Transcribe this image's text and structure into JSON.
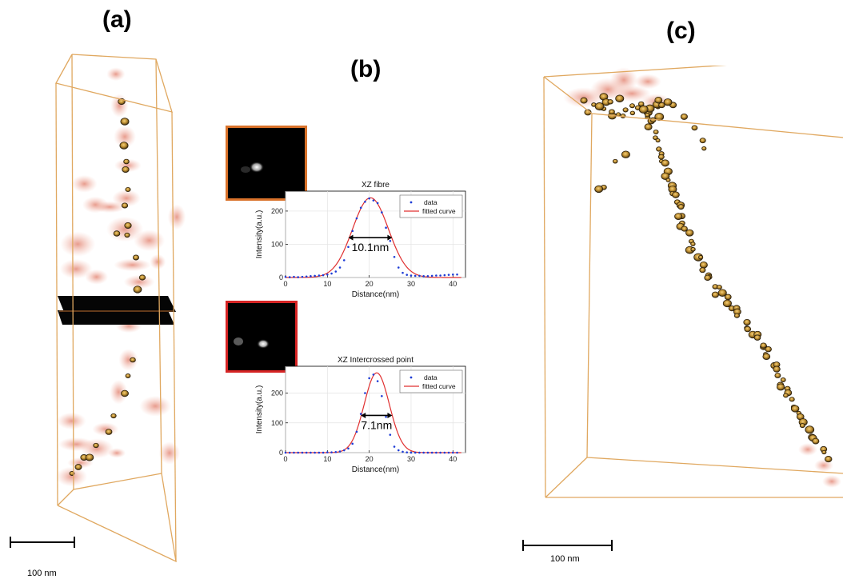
{
  "labels": {
    "a": "(a)",
    "b": "(b)",
    "c": "(c)"
  },
  "scalebars": {
    "left": "100 nm",
    "right": "100 nm"
  },
  "colors": {
    "box_edge": "#e0a860",
    "haze": "#e58c78",
    "bead": "#b98a2e",
    "thumb_frame_top": "#d9722a",
    "thumb_frame_bottom": "#d62424",
    "data": "#1f3dd6",
    "fit": "#e03030"
  },
  "chart_data": [
    {
      "type": "line",
      "title": "XZ fibre",
      "xlabel": "Distance(nm)",
      "ylabel": "Intensity(a.u.)",
      "xlim": [
        0,
        43
      ],
      "ylim": [
        0,
        260
      ],
      "xticks": [
        0,
        10,
        20,
        30,
        40
      ],
      "yticks": [
        0,
        100,
        200
      ],
      "grid": true,
      "legend": "top-right",
      "annotation": "10.1nm",
      "fwhm_range": [
        15,
        25.5
      ],
      "series": [
        {
          "name": "data",
          "style": "dots",
          "x": [
            0,
            1,
            2,
            3,
            4,
            5,
            6,
            7,
            8,
            9,
            10,
            11,
            12,
            13,
            14,
            15,
            16,
            17,
            18,
            19,
            20,
            21,
            22,
            23,
            24,
            25,
            26,
            27,
            28,
            29,
            30,
            31,
            32,
            33,
            34,
            35,
            36,
            37,
            38,
            39,
            40,
            41
          ],
          "y": [
            2,
            1,
            2,
            1,
            2,
            3,
            4,
            5,
            6,
            7,
            9,
            12,
            18,
            30,
            52,
            92,
            140,
            178,
            210,
            228,
            238,
            232,
            224,
            196,
            150,
            110,
            62,
            30,
            14,
            8,
            6,
            5,
            5,
            4,
            4,
            5,
            6,
            6,
            7,
            8,
            9,
            9
          ]
        },
        {
          "name": "fitted curve",
          "style": "line",
          "gaussian": {
            "amp": 240,
            "mu": 20.3,
            "sigma": 4.3
          }
        }
      ]
    },
    {
      "type": "line",
      "title": "XZ Intercrossed point",
      "xlabel": "Distance(nm)",
      "ylabel": "Intensity(a.u.)",
      "xlim": [
        0,
        43
      ],
      "ylim": [
        0,
        290
      ],
      "xticks": [
        0,
        10,
        20,
        30,
        40
      ],
      "yticks": [
        0,
        100,
        200
      ],
      "grid": true,
      "legend": "top-right",
      "annotation": "7.1nm",
      "fwhm_range": [
        18,
        25.5
      ],
      "series": [
        {
          "name": "data",
          "style": "dots",
          "x": [
            0,
            1,
            2,
            3,
            4,
            5,
            6,
            7,
            8,
            9,
            10,
            11,
            12,
            13,
            14,
            15,
            16,
            17,
            18,
            19,
            20,
            21,
            22,
            23,
            24,
            25,
            26,
            27,
            28,
            29,
            30,
            31,
            32,
            33,
            34,
            35,
            36,
            37,
            38,
            39,
            40,
            41
          ],
          "y": [
            0,
            0,
            0,
            0,
            0,
            0,
            0,
            0,
            0,
            0,
            1,
            1,
            2,
            4,
            8,
            14,
            30,
            70,
            130,
            200,
            250,
            262,
            240,
            190,
            120,
            60,
            20,
            8,
            3,
            1,
            0,
            0,
            0,
            0,
            0,
            0,
            0,
            0,
            0,
            0,
            0,
            0
          ]
        },
        {
          "name": "fitted curve",
          "style": "line",
          "gaussian": {
            "amp": 268,
            "mu": 21.8,
            "sigma": 3.0
          }
        }
      ]
    }
  ]
}
